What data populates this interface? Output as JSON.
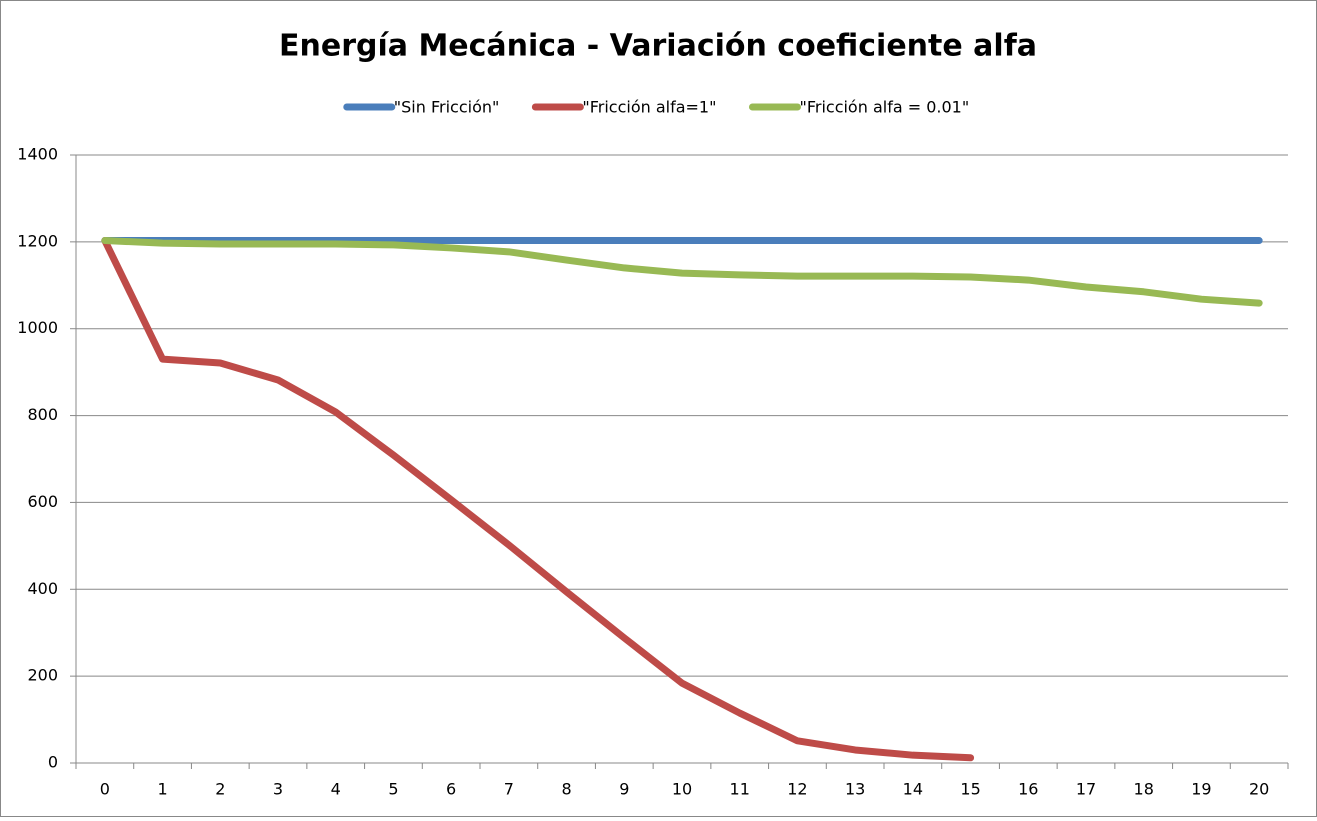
{
  "chart_data": {
    "type": "line",
    "title": "Energía Mecánica - Variación coeficiente alfa",
    "categories": [
      "0",
      "1",
      "2",
      "3",
      "4",
      "5",
      "6",
      "7",
      "8",
      "9",
      "10",
      "11",
      "12",
      "13",
      "14",
      "15",
      "16",
      "17",
      "18",
      "19",
      "20"
    ],
    "series": [
      {
        "name": "\"Sin Fricción\"",
        "color": "#4a7ebb",
        "values": [
          1203,
          1203,
          1203,
          1203,
          1203,
          1203,
          1203,
          1203,
          1203,
          1203,
          1203,
          1203,
          1203,
          1203,
          1203,
          1203,
          1203,
          1203,
          1203,
          1203,
          1203
        ]
      },
      {
        "name": "\"Fricción alfa=1\"",
        "color": "#be4b48",
        "values": [
          1203,
          930,
          921,
          882,
          808,
          709,
          606,
          502,
          394,
          288,
          184,
          115,
          51,
          30,
          18,
          12,
          null,
          null,
          null,
          null,
          null
        ]
      },
      {
        "name": "\"Fricción alfa = 0.01\"",
        "color": "#98b954",
        "values": [
          1203,
          1197,
          1195,
          1195,
          1195,
          1193,
          1186,
          1177,
          1158,
          1140,
          1128,
          1124,
          1121,
          1121,
          1121,
          1119,
          1112,
          1096,
          1085,
          1068,
          1059
        ]
      }
    ],
    "ylim": [
      0,
      1400
    ],
    "yticks": [
      0,
      200,
      400,
      600,
      800,
      1000,
      1200,
      1400
    ],
    "grid": true,
    "legend": "top"
  }
}
